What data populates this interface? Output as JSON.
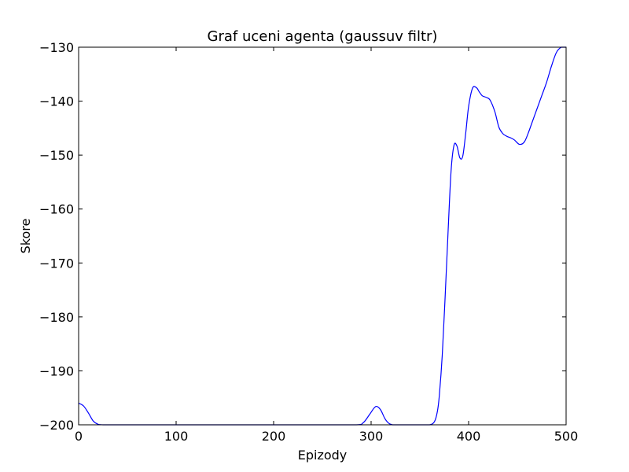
{
  "chart_data": {
    "type": "line",
    "title": "Graf uceni agenta (gaussuv filtr)",
    "xlabel": "Epizody",
    "ylabel": "Skore",
    "xlim": [
      0,
      500
    ],
    "ylim": [
      -200,
      -130
    ],
    "xticks": [
      0,
      100,
      200,
      300,
      400,
      500
    ],
    "xtick_labels": [
      "0",
      "100",
      "200",
      "300",
      "400",
      "500"
    ],
    "yticks": [
      -200,
      -190,
      -180,
      -170,
      -160,
      -150,
      -140,
      -130
    ],
    "ytick_labels": [
      "−200",
      "−190",
      "−180",
      "−170",
      "−160",
      "−150",
      "−140",
      "−130"
    ],
    "grid": false,
    "series": [
      {
        "color": "#0000ff",
        "x": [
          0,
          5,
          10,
          15,
          20,
          25,
          30,
          50,
          100,
          150,
          200,
          250,
          285,
          292,
          298,
          303,
          306,
          310,
          314,
          318,
          322,
          327,
          335,
          350,
          360,
          365,
          368,
          370,
          373,
          376,
          379,
          382,
          385,
          388,
          391,
          394,
          397,
          400,
          404,
          408,
          411,
          414,
          418,
          422,
          427,
          431,
          435,
          439,
          443,
          447,
          452,
          457,
          461,
          465,
          470,
          475,
          480,
          485,
          490,
          495,
          500
        ],
        "y": [
          -196.0,
          -196.5,
          -197.8,
          -199.3,
          -199.9,
          -200.0,
          -200.0,
          -200.0,
          -200.0,
          -200.0,
          -200.0,
          -200.0,
          -200.0,
          -199.6,
          -198.2,
          -196.9,
          -196.6,
          -197.3,
          -198.8,
          -199.7,
          -200.0,
          -200.0,
          -200.0,
          -200.0,
          -200.0,
          -199.4,
          -197.5,
          -194.5,
          -187.0,
          -176.0,
          -164.0,
          -153.0,
          -148.2,
          -148.3,
          -150.5,
          -150.2,
          -146.0,
          -141.0,
          -137.6,
          -137.5,
          -138.3,
          -139.0,
          -139.3,
          -139.8,
          -142.0,
          -144.8,
          -146.0,
          -146.5,
          -146.8,
          -147.2,
          -148.0,
          -147.6,
          -146.0,
          -144.0,
          -141.5,
          -139.0,
          -136.5,
          -133.5,
          -131.0,
          -130.0,
          -130.0
        ]
      }
    ]
  }
}
